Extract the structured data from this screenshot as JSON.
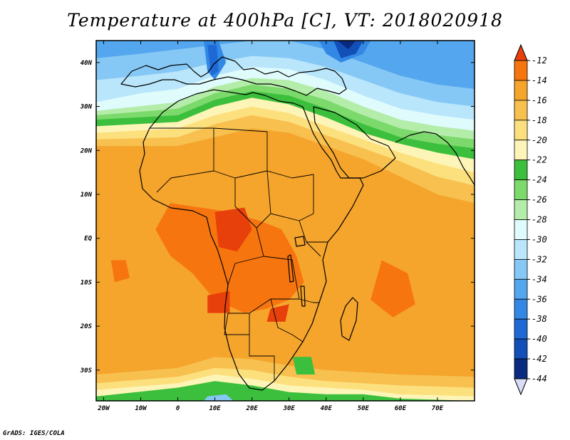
{
  "title": "Temperature at 400hPa [C], VT: 2018020918",
  "credit": "GrADS: IGES/COLA",
  "map": {
    "lon_range": [
      -22,
      80
    ],
    "lat_range": [
      -37,
      45
    ],
    "lat_ticks": [
      {
        "value": 40,
        "label": "40N"
      },
      {
        "value": 30,
        "label": "30N"
      },
      {
        "value": 20,
        "label": "20N"
      },
      {
        "value": 10,
        "label": "10N"
      },
      {
        "value": 0,
        "label": "EQ"
      },
      {
        "value": -10,
        "label": "10S"
      },
      {
        "value": -20,
        "label": "20S"
      },
      {
        "value": -30,
        "label": "30S"
      }
    ],
    "lon_ticks": [
      {
        "value": -20,
        "label": "20W"
      },
      {
        "value": -10,
        "label": "10W"
      },
      {
        "value": 0,
        "label": "0"
      },
      {
        "value": 10,
        "label": "10E"
      },
      {
        "value": 20,
        "label": "20E"
      },
      {
        "value": 30,
        "label": "30E"
      },
      {
        "value": 40,
        "label": "40E"
      },
      {
        "value": 50,
        "label": "50E"
      },
      {
        "value": 60,
        "label": "60E"
      },
      {
        "value": 70,
        "label": "70E"
      }
    ]
  },
  "colorbar": {
    "levels": [
      {
        "label": "-12",
        "color": "#e8400a"
      },
      {
        "label": "-14",
        "color": "#f6750f"
      },
      {
        "label": "-16",
        "color": "#f5a42c"
      },
      {
        "label": "-18",
        "color": "#f7c04f"
      },
      {
        "label": "-20",
        "color": "#fde07e"
      },
      {
        "label": "-22",
        "color": "#fdf5b8"
      },
      {
        "label": "-24",
        "color": "#3cbf3c"
      },
      {
        "label": "-26",
        "color": "#7cd96c"
      },
      {
        "label": "-28",
        "color": "#b4edaa"
      },
      {
        "label": "-30",
        "color": "#e0fbfc"
      },
      {
        "label": "-32",
        "color": "#b9e6fb"
      },
      {
        "label": "-34",
        "color": "#86c8f5"
      },
      {
        "label": "-36",
        "color": "#54a6ee"
      },
      {
        "label": "-38",
        "color": "#3288e4"
      },
      {
        "label": "-40",
        "color": "#1e69d6"
      },
      {
        "label": "-42",
        "color": "#124fb8"
      },
      {
        "label": "-44",
        "color": "#0a2a80"
      }
    ],
    "top_color": "#e8400a",
    "bottom_color": "#d8dcf5"
  },
  "field": {
    "base": "#f5a42c",
    "bands": [
      {
        "level": "-18",
        "color": "#f7c04f",
        "lat_edge": [
          [
            -22,
            21
          ],
          [
            0,
            21
          ],
          [
            10,
            23
          ],
          [
            20,
            25
          ],
          [
            30,
            24
          ],
          [
            40,
            21
          ],
          [
            50,
            18
          ],
          [
            60,
            14
          ],
          [
            70,
            10
          ],
          [
            80,
            8
          ]
        ]
      },
      {
        "level": "-20",
        "color": "#fde07e",
        "lat_edge": [
          [
            -22,
            22.5
          ],
          [
            0,
            23
          ],
          [
            10,
            26
          ],
          [
            20,
            28
          ],
          [
            30,
            26.5
          ],
          [
            40,
            23.5
          ],
          [
            50,
            20.5
          ],
          [
            60,
            17.5
          ],
          [
            70,
            14
          ],
          [
            80,
            12
          ]
        ]
      },
      {
        "level": "-22",
        "color": "#fdf5b8",
        "lat_edge": [
          [
            -22,
            24
          ],
          [
            0,
            25
          ],
          [
            10,
            28
          ],
          [
            20,
            30
          ],
          [
            30,
            28.5
          ],
          [
            40,
            25.5
          ],
          [
            50,
            22.5
          ],
          [
            60,
            19.5
          ],
          [
            70,
            17
          ],
          [
            80,
            15
          ]
        ]
      },
      {
        "level": "-24",
        "color": "#3cbf3c",
        "lat_edge": [
          [
            -22,
            25.5
          ],
          [
            0,
            26.5
          ],
          [
            10,
            30
          ],
          [
            20,
            32
          ],
          [
            30,
            30.5
          ],
          [
            40,
            27.5
          ],
          [
            50,
            24
          ],
          [
            60,
            21.5
          ],
          [
            70,
            19.5
          ],
          [
            80,
            18
          ]
        ]
      },
      {
        "level": "-26",
        "color": "#7cd96c",
        "lat_edge": [
          [
            -22,
            27
          ],
          [
            0,
            28
          ],
          [
            10,
            31.5
          ],
          [
            20,
            33.5
          ],
          [
            30,
            32.5
          ],
          [
            40,
            29.5
          ],
          [
            50,
            26
          ],
          [
            60,
            23
          ],
          [
            70,
            21.5
          ],
          [
            80,
            20.5
          ]
        ]
      },
      {
        "level": "-28",
        "color": "#b4edaa",
        "lat_edge": [
          [
            -22,
            28
          ],
          [
            0,
            29.5
          ],
          [
            10,
            33
          ],
          [
            20,
            35
          ],
          [
            30,
            34
          ],
          [
            40,
            31.5
          ],
          [
            50,
            28
          ],
          [
            60,
            25
          ],
          [
            70,
            23.5
          ],
          [
            80,
            22.5
          ]
        ]
      },
      {
        "level": "-30",
        "color": "#e0fbfc",
        "lat_edge": [
          [
            -22,
            29
          ],
          [
            0,
            31
          ],
          [
            10,
            34.5
          ],
          [
            20,
            36.5
          ],
          [
            30,
            36
          ],
          [
            40,
            33.5
          ],
          [
            50,
            30
          ],
          [
            60,
            27
          ],
          [
            70,
            25.5
          ],
          [
            80,
            24.5
          ]
        ]
      },
      {
        "level": "-32",
        "color": "#b9e6fb",
        "lat_edge": [
          [
            -22,
            31
          ],
          [
            -10,
            33
          ],
          [
            0,
            34
          ],
          [
            10,
            37
          ],
          [
            20,
            39
          ],
          [
            30,
            38.5
          ],
          [
            40,
            36
          ],
          [
            50,
            32.5
          ],
          [
            60,
            29.5
          ],
          [
            70,
            28
          ],
          [
            80,
            27
          ]
        ]
      },
      {
        "level": "-34",
        "color": "#86c8f5",
        "lat_edge": [
          [
            -22,
            36
          ],
          [
            -10,
            37
          ],
          [
            0,
            38
          ],
          [
            10,
            40
          ],
          [
            20,
            41.5
          ],
          [
            30,
            41
          ],
          [
            40,
            39
          ],
          [
            50,
            36
          ],
          [
            60,
            33
          ],
          [
            70,
            31
          ],
          [
            80,
            30
          ]
        ]
      },
      {
        "level": "-36",
        "color": "#54a6ee",
        "lat_edge": [
          [
            -22,
            41
          ],
          [
            -10,
            42
          ],
          [
            0,
            43
          ],
          [
            10,
            44
          ],
          [
            20,
            45
          ],
          [
            30,
            45
          ],
          [
            40,
            43
          ],
          [
            50,
            40
          ],
          [
            60,
            37
          ],
          [
            70,
            35
          ],
          [
            80,
            34
          ]
        ]
      }
    ],
    "south_bands": [
      {
        "level": "-18",
        "color": "#f7c04f",
        "lat_edge": [
          [
            -22,
            -31
          ],
          [
            0,
            -29.5
          ],
          [
            10,
            -27
          ],
          [
            20,
            -27.5
          ],
          [
            30,
            -29
          ],
          [
            40,
            -30
          ],
          [
            50,
            -30.5
          ],
          [
            60,
            -31
          ],
          [
            80,
            -31.5
          ]
        ]
      },
      {
        "level": "-20",
        "color": "#fde07e",
        "lat_edge": [
          [
            -22,
            -33
          ],
          [
            0,
            -31.5
          ],
          [
            10,
            -29.5
          ],
          [
            20,
            -30
          ],
          [
            30,
            -31.5
          ],
          [
            40,
            -32.5
          ],
          [
            50,
            -33
          ],
          [
            60,
            -33.5
          ],
          [
            80,
            -34
          ]
        ]
      },
      {
        "level": "-22",
        "color": "#fdf5b8",
        "lat_edge": [
          [
            -22,
            -34.5
          ],
          [
            0,
            -33
          ],
          [
            10,
            -31
          ],
          [
            20,
            -32
          ],
          [
            30,
            -33.5
          ],
          [
            40,
            -34
          ],
          [
            50,
            -34.5
          ],
          [
            60,
            -35.5
          ],
          [
            80,
            -36
          ]
        ]
      },
      {
        "level": "-24",
        "color": "#3cbf3c",
        "lat_edge": [
          [
            -22,
            -36
          ],
          [
            0,
            -34
          ],
          [
            10,
            -32.5
          ],
          [
            20,
            -33.5
          ],
          [
            30,
            -35
          ],
          [
            40,
            -35.5
          ],
          [
            50,
            -35.5
          ],
          [
            60,
            -36.5
          ],
          [
            80,
            -37
          ]
        ]
      }
    ],
    "warm_patches": [
      {
        "level": "-14",
        "color": "#f6750f",
        "points": [
          [
            -2,
            8
          ],
          [
            6,
            7
          ],
          [
            14,
            6
          ],
          [
            22,
            4
          ],
          [
            28,
            2
          ],
          [
            32,
            -4
          ],
          [
            34,
            -10
          ],
          [
            30,
            -14
          ],
          [
            24,
            -16
          ],
          [
            18,
            -17
          ],
          [
            10,
            -14
          ],
          [
            4,
            -8
          ],
          [
            -2,
            -4
          ],
          [
            -6,
            2
          ]
        ]
      },
      {
        "level": "-14",
        "color": "#f6750f",
        "points": [
          [
            -18,
            -5
          ],
          [
            -14,
            -5
          ],
          [
            -13,
            -9
          ],
          [
            -17,
            -10
          ]
        ]
      },
      {
        "level": "-14",
        "color": "#f6750f",
        "points": [
          [
            55,
            -5
          ],
          [
            62,
            -8
          ],
          [
            64,
            -15
          ],
          [
            58,
            -18
          ],
          [
            52,
            -14
          ]
        ]
      },
      {
        "level": "-12",
        "color": "#e8400a",
        "points": [
          [
            10,
            6
          ],
          [
            18,
            7
          ],
          [
            20,
            2
          ],
          [
            16,
            -3
          ],
          [
            11,
            -2
          ]
        ]
      },
      {
        "level": "-12",
        "color": "#e8400a",
        "points": [
          [
            8,
            -13
          ],
          [
            14,
            -12
          ],
          [
            14,
            -17
          ],
          [
            8,
            -17
          ]
        ]
      },
      {
        "level": "-12",
        "color": "#e8400a",
        "points": [
          [
            25,
            -16
          ],
          [
            30,
            -15
          ],
          [
            29,
            -19
          ],
          [
            24,
            -19
          ]
        ]
      }
    ],
    "cold_patches": [
      {
        "level": "-38",
        "color": "#3288e4",
        "points": [
          [
            7,
            45
          ],
          [
            11,
            45
          ],
          [
            13,
            40
          ],
          [
            10,
            36
          ],
          [
            8,
            38
          ]
        ]
      },
      {
        "level": "-40",
        "color": "#1e69d6",
        "points": [
          [
            8,
            44
          ],
          [
            10.5,
            44
          ],
          [
            11,
            38
          ],
          [
            9,
            37
          ]
        ]
      },
      {
        "level": "-38",
        "color": "#3288e4",
        "points": [
          [
            38,
            45
          ],
          [
            52,
            45
          ],
          [
            50,
            42
          ],
          [
            44,
            40
          ],
          [
            40,
            42
          ]
        ]
      },
      {
        "level": "-42",
        "color": "#124fb8",
        "points": [
          [
            42,
            45
          ],
          [
            50,
            45
          ],
          [
            48,
            42
          ],
          [
            44,
            41
          ]
        ]
      },
      {
        "level": "-44",
        "color": "#0a2a80",
        "points": [
          [
            43,
            45
          ],
          [
            48,
            45
          ],
          [
            46,
            43
          ]
        ]
      },
      {
        "level": "-24",
        "color": "#3cbf3c",
        "points": [
          [
            31,
            -27
          ],
          [
            36,
            -27
          ],
          [
            37,
            -31
          ],
          [
            32,
            -31
          ]
        ]
      },
      {
        "level": "-34",
        "color": "#86c8f5",
        "points": [
          [
            8,
            -36
          ],
          [
            13,
            -35.5
          ],
          [
            15,
            -37
          ],
          [
            7,
            -37
          ]
        ]
      }
    ]
  }
}
